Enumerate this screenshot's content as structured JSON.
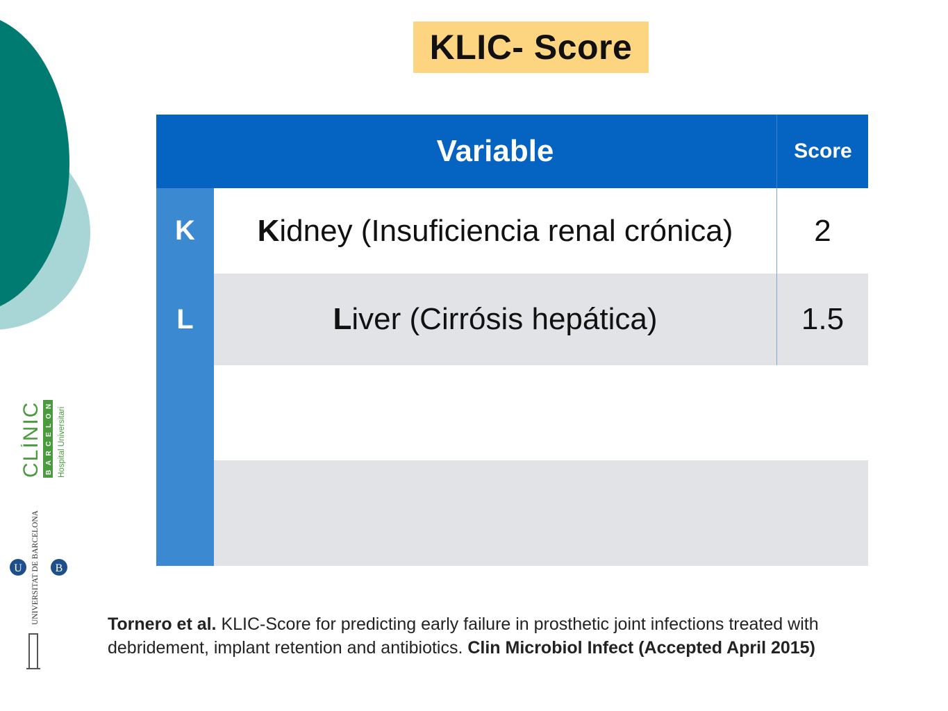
{
  "slide": {
    "title": "KLIC- Score"
  },
  "table": {
    "header": {
      "variable": "Variable",
      "score": "Score"
    },
    "rows": [
      {
        "letter": "K",
        "initial": "K",
        "rest": "idney (Insuficiencia renal crónica)",
        "score": "2"
      },
      {
        "letter": "L",
        "initial": "L",
        "rest": "iver (Cirrósis hepática)",
        "score": "1.5"
      }
    ]
  },
  "citation": {
    "authors": "Tornero et al.",
    "text": " KLIC-Score for predicting early failure in prosthetic joint infections treated with debridement, implant retention and antibiotics. ",
    "journal": "Clin Microbiol Infect (Accepted April 2015)"
  },
  "logos": {
    "clinic": {
      "name": "CLÍNIC",
      "city": "BARCELONA",
      "subtitle": "Hospital Universitari"
    },
    "ub": {
      "name": "UNIVERSITAT DE BARCELONA",
      "initials": "UB"
    }
  },
  "colors": {
    "header_blue": "#0563c1",
    "letter_blue": "#3a89d1",
    "title_bg": "#fdd47f",
    "deco_dark": "#007b72",
    "deco_light": "#a8d5d6",
    "clinic_green": "#4a9a3e"
  }
}
